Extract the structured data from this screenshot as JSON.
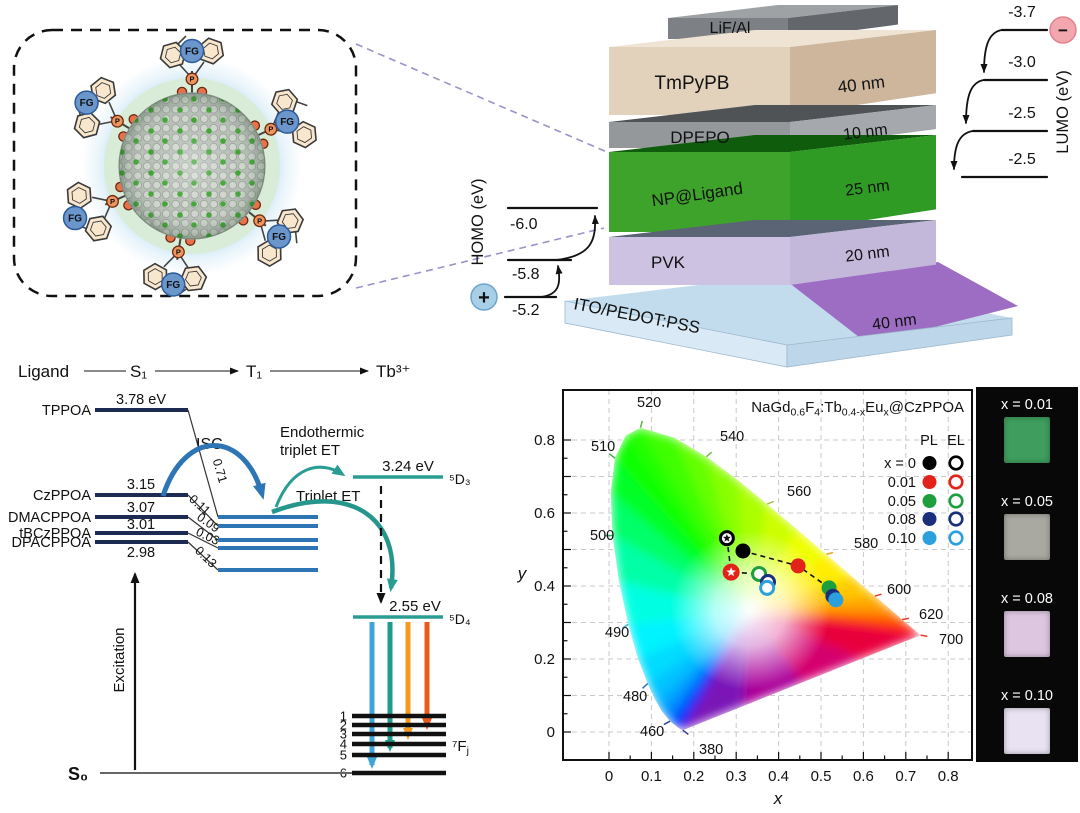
{
  "molecule_panel": {
    "fg_label": "FG",
    "p_label": "P"
  },
  "device_panel": {
    "layers": [
      {
        "name": "LiF/Al",
        "thickness": "",
        "color_front": "#7d8084",
        "color_top": "#9fa2a5",
        "color_side": "#63666a"
      },
      {
        "name": "TmPyPB",
        "thickness": "40 nm",
        "color_front": "#e2d2bc",
        "color_top": "#efe4d4",
        "color_side": "#cdb69c"
      },
      {
        "name": "DPEPO",
        "thickness": "10 nm",
        "color_front": "#95989b",
        "color_top": "#505356",
        "color_side": "#a5a8ac"
      },
      {
        "name": "NP@Ligand",
        "thickness": "25 nm",
        "color_front": "#3ea32b",
        "color_top": "#0f5c0d",
        "color_side": "#2f9a24"
      },
      {
        "name": "PVK",
        "thickness": "20 nm",
        "color_front": "#cdc2e2",
        "color_top": "#5a6474",
        "color_side": "#c3b7da"
      },
      {
        "name": "ITO/PEDOT:PSS",
        "thickness": "40 nm",
        "color_front": "#d9e9f5",
        "color_top": "#c2dcee",
        "color_side": "#bdd6e9"
      }
    ],
    "pedot_color": "#9d6cc3",
    "homo": {
      "axis_label": "HOMO (eV)",
      "values": [
        "-6.0",
        "-5.8",
        "-5.2"
      ],
      "carrier_symbol": "+"
    },
    "lumo": {
      "axis_label": "LUMO (eV)",
      "values": [
        "-3.7",
        "-3.0",
        "-2.5",
        "-2.5"
      ],
      "carrier_symbol": "−"
    }
  },
  "energy_diagram": {
    "header": {
      "ligand": "Ligand",
      "s1": "S₁",
      "t1": "T₁",
      "tb": "Tb³⁺"
    },
    "s1_levels": [
      {
        "name": "TPPOA",
        "energy": "3.78 eV"
      },
      {
        "name": "CzPPOA",
        "energy": "3.15"
      },
      {
        "name": "DMACPPOA",
        "energy": "3.07"
      },
      {
        "name": "tBCzPPOA",
        "energy": "3.01"
      },
      {
        "name": "DPACPPOA",
        "energy": "2.98"
      }
    ],
    "coupling_values": [
      "0.71",
      "0.11",
      "0.09",
      "0.03",
      "0.13"
    ],
    "isc_label": "ISC",
    "endothermic_label": [
      "Endothermic",
      "triplet ET"
    ],
    "triplet_et_label": "Triplet ET",
    "d3_level": {
      "energy": "3.24 eV",
      "term": "⁵D₃"
    },
    "d4_level": {
      "energy": "2.55 eV",
      "term": "⁵D₄"
    },
    "f_level_numbers": [
      "1",
      "2",
      "3",
      "4",
      "5",
      "6"
    ],
    "fj_label": "⁷F",
    "fj_sub": "j",
    "s0_label": "S₀",
    "excitation_label": "Excitation"
  },
  "chart_data": {
    "type": "scatter",
    "title_parts": [
      {
        "t": "NaGd"
      },
      {
        "t": "0.6",
        "sub": true
      },
      {
        "t": "F"
      },
      {
        "t": "4",
        "sub": true
      },
      {
        "t": ":Tb"
      },
      {
        "t": "0.4-x",
        "sub": true
      },
      {
        "t": "Eu"
      },
      {
        "t": "x",
        "sub": true
      },
      {
        "t": "@CzPPOA"
      }
    ],
    "xlabel": "x",
    "ylabel": "y",
    "xlim": [
      0,
      0.8
    ],
    "ylim": [
      0,
      0.8
    ],
    "grid": true,
    "x_ticks": [
      "0",
      "0.1",
      "0.2",
      "0.3",
      "0.4",
      "0.5",
      "0.6",
      "0.7",
      "0.8"
    ],
    "y_ticks": [
      "0",
      "0.2",
      "0.4",
      "0.6",
      "0.8"
    ],
    "legend": {
      "pl_header": "PL",
      "el_header": "EL",
      "rows": [
        {
          "label": "x = 0",
          "color": "#000000"
        },
        {
          "label": "0.01",
          "color": "#e3231a"
        },
        {
          "label": "0.05",
          "color": "#1f9e3e"
        },
        {
          "label": "0.08",
          "color": "#1b2f7d"
        },
        {
          "label": "0.10",
          "color": "#2ba0dd"
        }
      ]
    },
    "series": [
      {
        "name": "PL",
        "marker": "filled",
        "points": [
          {
            "x_label": "0",
            "cie_x": 0.316,
            "cie_y": 0.496,
            "color": "#000000"
          },
          {
            "x_label": "0.01",
            "cie_x": 0.446,
            "cie_y": 0.455,
            "color": "#e3231a"
          },
          {
            "x_label": "0.05",
            "cie_x": 0.519,
            "cie_y": 0.395,
            "color": "#1f9e3e"
          },
          {
            "x_label": "0.08",
            "cie_x": 0.528,
            "cie_y": 0.372,
            "color": "#1b2f7d"
          },
          {
            "x_label": "0.10",
            "cie_x": 0.535,
            "cie_y": 0.362,
            "color": "#2ba0dd"
          }
        ]
      },
      {
        "name": "EL",
        "marker": "open",
        "points": [
          {
            "x_label": "0",
            "cie_x": 0.278,
            "cie_y": 0.531,
            "color": "#000000",
            "star": true
          },
          {
            "x_label": "0.01",
            "cie_x": 0.288,
            "cie_y": 0.438,
            "color": "#e3231a",
            "star": true
          },
          {
            "x_label": "0.05",
            "cie_x": 0.354,
            "cie_y": 0.433,
            "color": "#1f9e3e"
          },
          {
            "x_label": "0.08",
            "cie_x": 0.375,
            "cie_y": 0.411,
            "color": "#1b2f7d"
          },
          {
            "x_label": "0.10",
            "cie_x": 0.373,
            "cie_y": 0.395,
            "color": "#2ba0dd"
          }
        ]
      }
    ],
    "wavelength_labels": [
      {
        "nm": "520",
        "color": "#5cb04a"
      },
      {
        "nm": "540",
        "color": "#79b743"
      },
      {
        "nm": "560",
        "color": "#a3c045"
      },
      {
        "nm": "580",
        "color": "#f0a020"
      },
      {
        "nm": "600",
        "color": "#e43a2c"
      },
      {
        "nm": "620",
        "color": "#e43a2c"
      },
      {
        "nm": "700",
        "color": "#e43a2c"
      },
      {
        "nm": "510",
        "color": "#4aa84e"
      },
      {
        "nm": "500",
        "color": "#3da45f"
      },
      {
        "nm": "490",
        "color": "#38b0d0"
      },
      {
        "nm": "480",
        "color": "#2e6fc0"
      },
      {
        "nm": "460",
        "color": "#26429e"
      },
      {
        "nm": "380",
        "color": "#3b3a9e"
      }
    ]
  },
  "photo_panel": {
    "samples": [
      {
        "label": "x = 0.01",
        "color": "#3f9e5e"
      },
      {
        "label": "x = 0.05",
        "color": "#a9a9a1"
      },
      {
        "label": "x = 0.08",
        "color": "#dcc6e0"
      },
      {
        "label": "x = 0.10",
        "color": "#e9e2f2"
      }
    ]
  }
}
